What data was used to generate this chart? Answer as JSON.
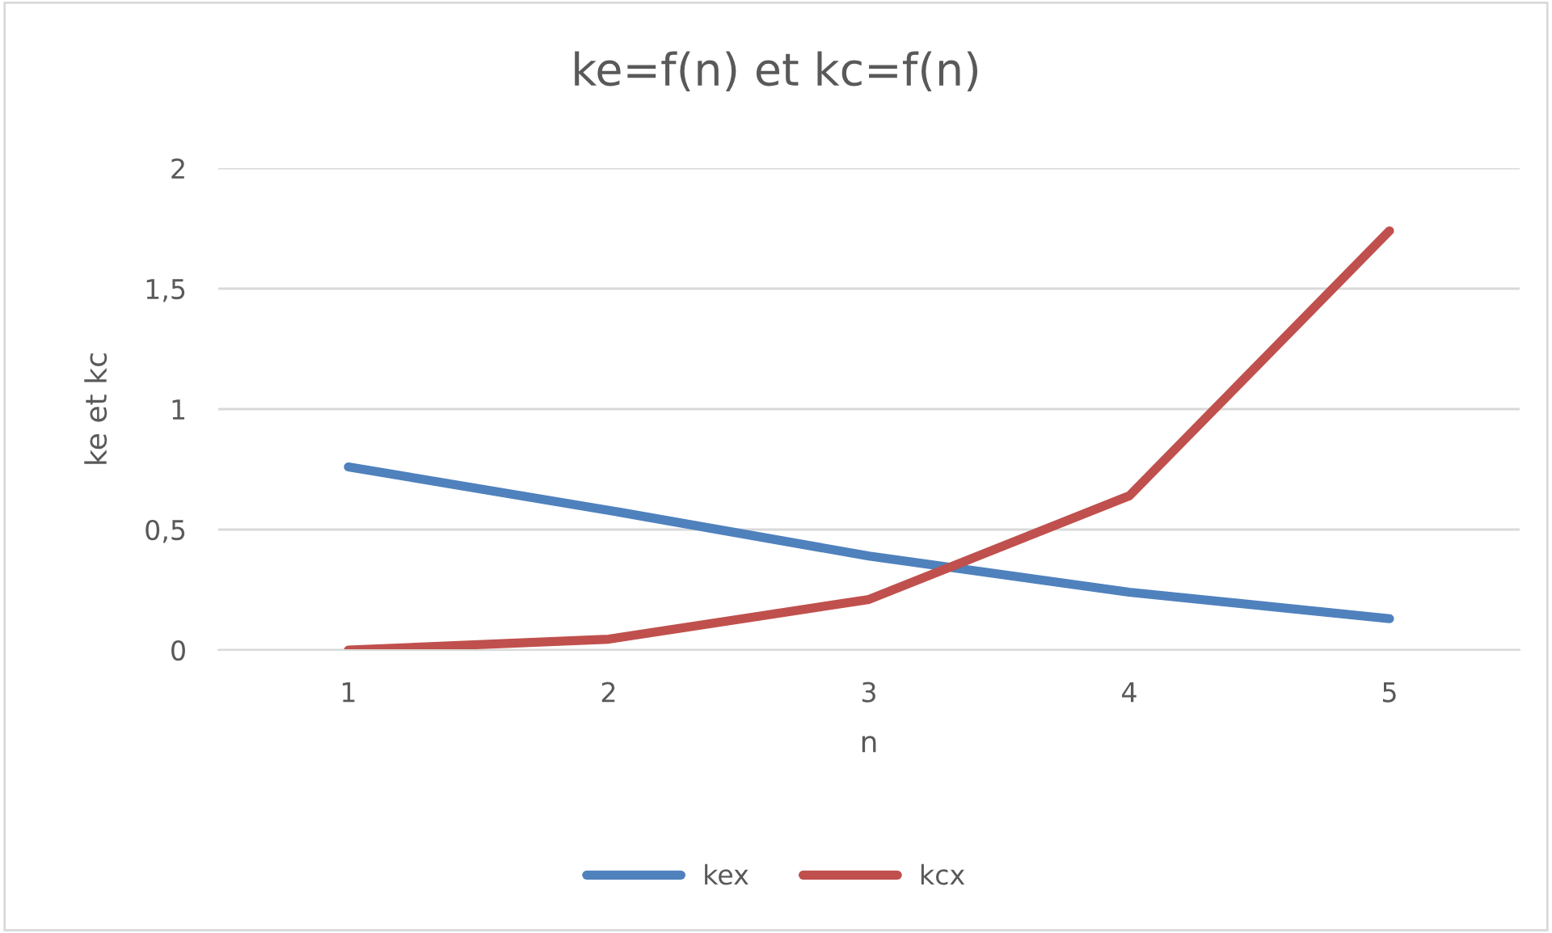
{
  "chart_data": {
    "type": "line",
    "title": "ke=f(n) et kc=f(n)",
    "xlabel": "n",
    "ylabel": "ke et kc",
    "categories": [
      "1",
      "2",
      "3",
      "4",
      "5"
    ],
    "series": [
      {
        "name": "kex",
        "color": "#4f81bd",
        "values": [
          0.76,
          0.58,
          0.39,
          0.24,
          0.13
        ]
      },
      {
        "name": "kcx",
        "color": "#c0504d",
        "values": [
          0,
          0.045,
          0.21,
          0.64,
          1.74
        ]
      }
    ],
    "ylim": [
      0,
      2
    ],
    "yticks": [
      0,
      {
        "value": 0.5,
        "label": "0,5"
      },
      1,
      {
        "value": 1.5,
        "label": "1,5"
      },
      2
    ],
    "grid": "y",
    "legend": "bottom",
    "marker": "none",
    "line_style": "solid"
  }
}
